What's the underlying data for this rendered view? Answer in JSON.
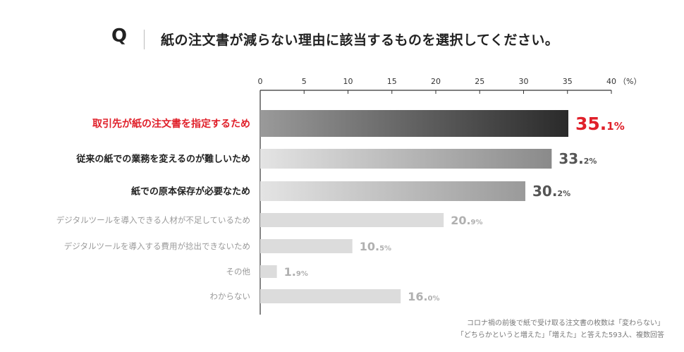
{
  "question": {
    "marker": "Q",
    "text": "紙の注文書が減らない理由に該当するものを選択してください。"
  },
  "chart_data": {
    "type": "bar",
    "orientation": "horizontal",
    "x_ticks": [
      "0",
      "5",
      "10",
      "15",
      "20",
      "25",
      "30",
      "35",
      "40"
    ],
    "unit_label": "（%）",
    "xlim": [
      0,
      40
    ],
    "categories": [
      "取引先が紙の注文書を指定するため",
      "従来の紙での業務を変えるのが難しいため",
      "紙での原本保存が必要なため",
      "デジタルツールを導入できる人材が不足しているため",
      "デジタルツールを導入する費用が捻出できないため",
      "その他",
      "わからない"
    ],
    "values": [
      35.1,
      33.2,
      30.2,
      20.9,
      10.5,
      1.9,
      16.0
    ],
    "value_labels": [
      {
        "main": "35.",
        "sub": "1%"
      },
      {
        "main": "33.",
        "sub": "2%"
      },
      {
        "main": "30.",
        "sub": "2%"
      },
      {
        "main": "20.",
        "sub": "9%"
      },
      {
        "main": "10.",
        "sub": "5%"
      },
      {
        "main": "1.",
        "sub": "9%"
      },
      {
        "main": "16.",
        "sub": "0%"
      }
    ],
    "colors": {
      "highlight_label": "#e0202a",
      "highlight_value": "#e0202a",
      "top_label": "#222222",
      "muted_label": "#9a9a9a",
      "bar1_start": "#9a9a9a",
      "bar1_end": "#2a2a2a",
      "bar2_start": "#e4e4e4",
      "bar2_end": "#8a8a8a",
      "bar3_start": "#e4e4e4",
      "bar3_end": "#9a9a9a",
      "muted_bar": "#dcdcdc",
      "top_value": "#555555",
      "muted_value": "#b0b0b0"
    },
    "grid": false
  },
  "footnote": {
    "line1": "コロナ禍の前後で紙で受け取る注文書の枚数は「変わらない」",
    "line2": "「どちらかというと増えた」「増えた」と答えた593人、複数回答"
  }
}
